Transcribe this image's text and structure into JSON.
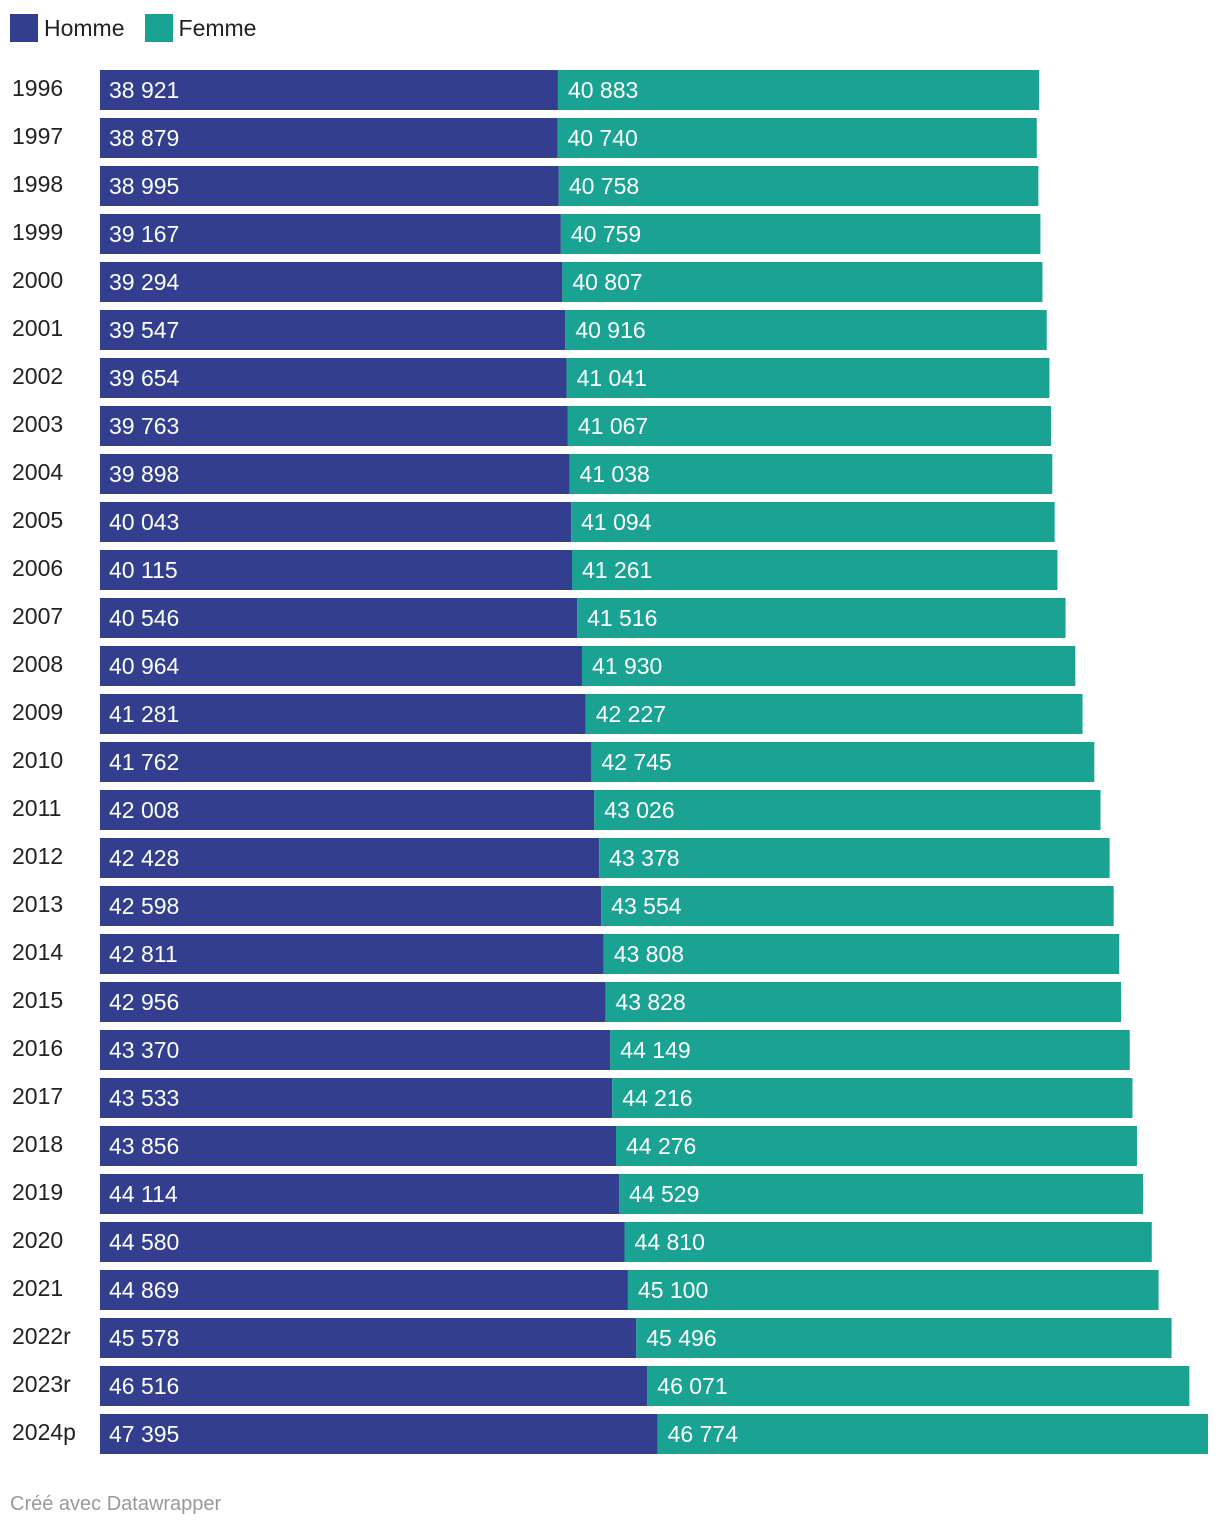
{
  "colors": {
    "homme": "#333e8e",
    "femme": "#1aa393"
  },
  "legend": [
    {
      "label": "Homme",
      "color": "#333e8e"
    },
    {
      "label": "Femme",
      "color": "#1aa393"
    }
  ],
  "footer": {
    "credit": "Créé avec Datawrapper"
  },
  "chart_data": {
    "type": "bar",
    "orientation": "horizontal",
    "stacked": true,
    "title": "",
    "xlabel": "",
    "ylabel": "",
    "categories": [
      "1996",
      "1997",
      "1998",
      "1999",
      "2000",
      "2001",
      "2002",
      "2003",
      "2004",
      "2005",
      "2006",
      "2007",
      "2008",
      "2009",
      "2010",
      "2011",
      "2012",
      "2013",
      "2014",
      "2015",
      "2016",
      "2017",
      "2018",
      "2019",
      "2020",
      "2021",
      "2022r",
      "2023r",
      "2024p"
    ],
    "series": [
      {
        "name": "Homme",
        "values": [
          38921,
          38879,
          38995,
          39167,
          39294,
          39547,
          39654,
          39763,
          39898,
          40043,
          40115,
          40546,
          40964,
          41281,
          41762,
          42008,
          42428,
          42598,
          42811,
          42956,
          43370,
          43533,
          43856,
          44114,
          44580,
          44869,
          45578,
          46516,
          47395
        ],
        "labels": [
          "38 921",
          "38 879",
          "38 995",
          "39 167",
          "39 294",
          "39 547",
          "39 654",
          "39 763",
          "39 898",
          "40 043",
          "40 115",
          "40 546",
          "40 964",
          "41 281",
          "41 762",
          "42 008",
          "42 428",
          "42 598",
          "42 811",
          "42 956",
          "43 370",
          "43 533",
          "43 856",
          "44 114",
          "44 580",
          "44 869",
          "45 578",
          "46 516",
          "47 395"
        ]
      },
      {
        "name": "Femme",
        "values": [
          40883,
          40740,
          40758,
          40759,
          40807,
          40916,
          41041,
          41067,
          41038,
          41094,
          41261,
          41516,
          41930,
          42227,
          42745,
          43026,
          43378,
          43554,
          43808,
          43828,
          44149,
          44216,
          44276,
          44529,
          44810,
          45100,
          45496,
          46071,
          46774
        ],
        "labels": [
          "40 883",
          "40 740",
          "40 758",
          "40 759",
          "40 807",
          "40 916",
          "41 041",
          "41 067",
          "41 038",
          "41 094",
          "41 261",
          "41 516",
          "41 930",
          "42 227",
          "42 745",
          "43 026",
          "43 378",
          "43 554",
          "43 808",
          "43 828",
          "44 149",
          "44 216",
          "44 276",
          "44 529",
          "44 810",
          "45 100",
          "45 496",
          "46 071",
          "46 774"
        ]
      }
    ],
    "xlim": [
      0,
      94169
    ],
    "grid": false,
    "legend_position": "top-left"
  }
}
